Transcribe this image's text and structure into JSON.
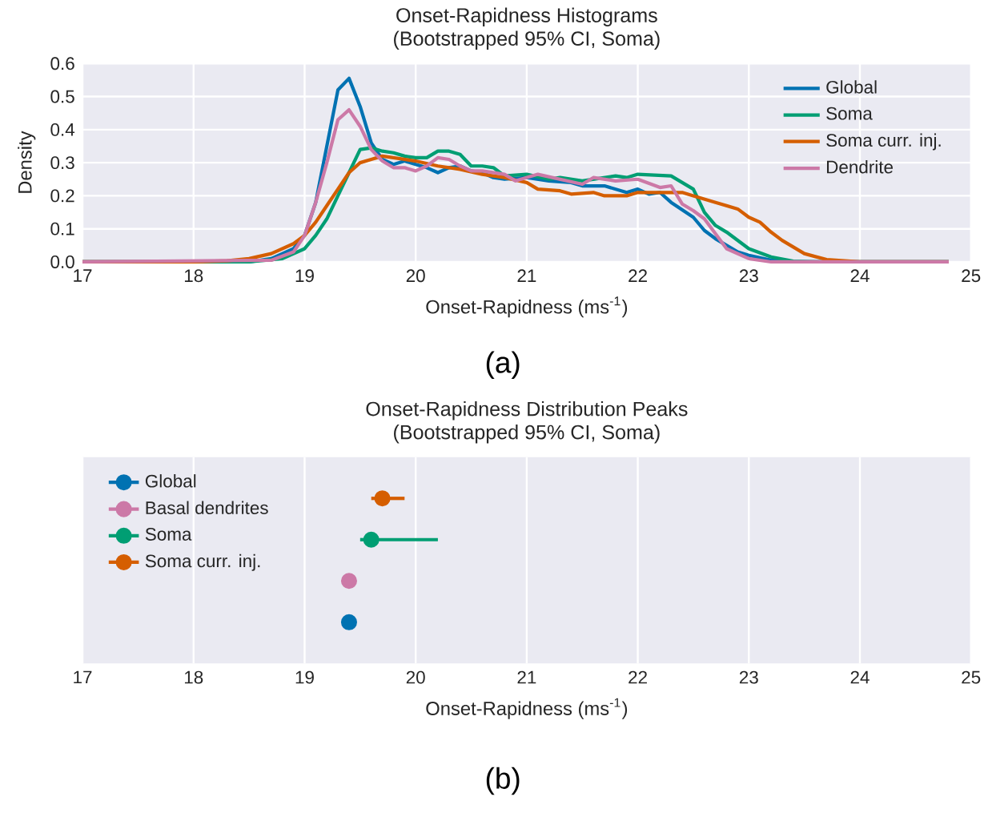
{
  "chart_data": [
    {
      "type": "line",
      "title": "Onset-Rapidness Histograms",
      "subtitle": "(Bootstrapped 95% CI, Soma)",
      "xlabel": "Onset-Rapidness (ms$^{-1}$)",
      "ylabel": "Density",
      "annotations": [
        "(a)"
      ],
      "xlim": [
        17,
        25
      ],
      "ylim": [
        0,
        0.6
      ],
      "xticks": [
        17,
        18,
        19,
        20,
        21,
        22,
        23,
        24,
        25
      ],
      "yticks": [
        {
          "value": 0,
          "label": "0.0"
        },
        {
          "value": 0.1,
          "label": "0.1"
        },
        {
          "value": 0.2,
          "label": "0.2"
        },
        {
          "value": 0.3,
          "label": "0.3"
        },
        {
          "value": 0.4,
          "label": "0.4"
        },
        {
          "value": 0.5,
          "label": "0.5"
        },
        {
          "value": 0.6,
          "label": "0.6"
        }
      ],
      "grid": true,
      "legend": "top right",
      "marker": "none",
      "line_style": "solid",
      "series": [
        {
          "name": "Global",
          "color": "#0072b2",
          "x": [
            17,
            18,
            18.5,
            18.7,
            18.9,
            19.0,
            19.1,
            19.2,
            19.3,
            19.4,
            19.5,
            19.6,
            19.7,
            19.8,
            19.9,
            20.0,
            20.1,
            20.2,
            20.3,
            20.4,
            20.5,
            20.6,
            20.7,
            20.8,
            21.0,
            21.2,
            21.4,
            21.5,
            21.7,
            21.9,
            22.0,
            22.1,
            22.2,
            22.3,
            22.5,
            22.6,
            22.7,
            22.9,
            23.0,
            23.2,
            23.4,
            24.8
          ],
          "values": [
            0,
            0,
            0,
            0.01,
            0.04,
            0.08,
            0.18,
            0.35,
            0.52,
            0.555,
            0.47,
            0.36,
            0.31,
            0.295,
            0.305,
            0.295,
            0.285,
            0.27,
            0.285,
            0.29,
            0.275,
            0.27,
            0.255,
            0.25,
            0.255,
            0.245,
            0.24,
            0.23,
            0.23,
            0.21,
            0.22,
            0.205,
            0.21,
            0.18,
            0.135,
            0.095,
            0.07,
            0.03,
            0.02,
            0.005,
            0,
            0
          ]
        },
        {
          "name": "Soma",
          "color": "#009e73",
          "x": [
            17,
            18.5,
            18.8,
            19.0,
            19.1,
            19.2,
            19.3,
            19.4,
            19.5,
            19.6,
            19.7,
            19.8,
            19.9,
            20.0,
            20.1,
            20.2,
            20.3,
            20.4,
            20.5,
            20.6,
            20.7,
            20.8,
            21.0,
            21.2,
            21.3,
            21.5,
            21.7,
            21.8,
            21.9,
            22.0,
            22.3,
            22.5,
            22.6,
            22.7,
            22.8,
            23.0,
            23.2,
            23.4,
            23.6,
            24.8
          ],
          "values": [
            0,
            0,
            0.01,
            0.04,
            0.08,
            0.13,
            0.2,
            0.27,
            0.34,
            0.345,
            0.335,
            0.33,
            0.32,
            0.315,
            0.315,
            0.335,
            0.335,
            0.325,
            0.29,
            0.29,
            0.285,
            0.26,
            0.265,
            0.25,
            0.255,
            0.245,
            0.255,
            0.26,
            0.255,
            0.265,
            0.26,
            0.22,
            0.15,
            0.11,
            0.09,
            0.04,
            0.015,
            0.002,
            0,
            0
          ]
        },
        {
          "name": "Soma curr. inj.",
          "color": "#d55e00",
          "x": [
            17,
            18.0,
            18.3,
            18.5,
            18.7,
            18.9,
            19.0,
            19.1,
            19.2,
            19.3,
            19.4,
            19.5,
            19.6,
            19.7,
            19.8,
            20.0,
            20.2,
            20.4,
            20.6,
            20.8,
            21.0,
            21.1,
            21.3,
            21.4,
            21.6,
            21.7,
            21.9,
            22.0,
            22.2,
            22.4,
            22.5,
            22.7,
            22.9,
            23.0,
            23.1,
            23.2,
            23.3,
            23.5,
            23.7,
            24.0,
            24.8
          ],
          "values": [
            0,
            0,
            0.003,
            0.01,
            0.025,
            0.055,
            0.08,
            0.12,
            0.17,
            0.22,
            0.27,
            0.3,
            0.31,
            0.32,
            0.315,
            0.305,
            0.29,
            0.28,
            0.265,
            0.255,
            0.24,
            0.22,
            0.215,
            0.205,
            0.21,
            0.2,
            0.2,
            0.21,
            0.21,
            0.21,
            0.2,
            0.18,
            0.16,
            0.135,
            0.12,
            0.09,
            0.065,
            0.025,
            0.007,
            0,
            0
          ]
        },
        {
          "name": "Dendrite",
          "color": "#cc79a7",
          "x": [
            17,
            18.7,
            18.9,
            19.0,
            19.1,
            19.2,
            19.3,
            19.4,
            19.5,
            19.6,
            19.7,
            19.8,
            19.9,
            20.0,
            20.1,
            20.2,
            20.3,
            20.4,
            20.5,
            20.6,
            20.8,
            20.9,
            21.1,
            21.3,
            21.5,
            21.6,
            21.8,
            22.0,
            22.2,
            22.3,
            22.4,
            22.5,
            22.6,
            22.8,
            23.0,
            23.2,
            24.8
          ],
          "values": [
            0,
            0.005,
            0.03,
            0.08,
            0.18,
            0.3,
            0.43,
            0.46,
            0.41,
            0.34,
            0.305,
            0.285,
            0.285,
            0.275,
            0.29,
            0.315,
            0.31,
            0.29,
            0.275,
            0.275,
            0.265,
            0.245,
            0.265,
            0.25,
            0.235,
            0.255,
            0.245,
            0.25,
            0.225,
            0.23,
            0.175,
            0.155,
            0.13,
            0.04,
            0.01,
            0,
            0
          ]
        }
      ]
    },
    {
      "type": "scatter",
      "orientation": "horizontal",
      "title": "Onset-Rapidness Distribution Peaks",
      "subtitle": "(Bootstrapped 95% CI, Soma)",
      "xlabel": "Onset-Rapidness (ms$^{-1}$)",
      "annotations": [
        "(b)"
      ],
      "categories": [
        null,
        null,
        null,
        null
      ],
      "xlim": [
        17,
        25
      ],
      "xticks": [
        17,
        18,
        19,
        20,
        21,
        22,
        23,
        24,
        25
      ],
      "grid": "x",
      "legend": "top left",
      "marker": "circle",
      "tick_labels": "x",
      "series": [
        {
          "name": "Global",
          "color": "#0072b2",
          "values": [
            null,
            null,
            null,
            19.4
          ]
        },
        {
          "name": "Basal dendrites",
          "color": "#cc79a7",
          "values": [
            null,
            null,
            19.4,
            null
          ]
        },
        {
          "name": "Soma",
          "color": "#009e73",
          "values": [
            null,
            19.6,
            null,
            null
          ],
          "errors": [
            null,
            [
              19.5,
              20.2
            ],
            null,
            null
          ]
        },
        {
          "name": "Soma curr. inj.",
          "color": "#d55e00",
          "values": [
            19.7,
            null,
            null,
            null
          ],
          "errors": [
            [
              19.6,
              19.9
            ],
            null,
            null,
            null
          ]
        }
      ]
    }
  ]
}
